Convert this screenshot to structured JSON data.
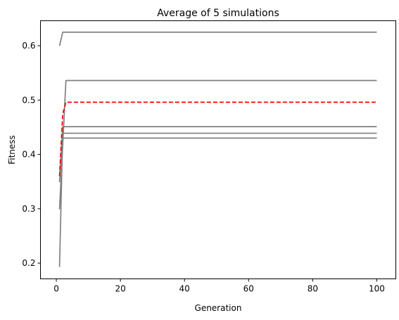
{
  "chart_data": {
    "type": "line",
    "title": "Average of 5 simulations",
    "xlabel": "Generation",
    "ylabel": "Fitness",
    "xlim": [
      -4.95,
      105.95
    ],
    "ylim": [
      0.171,
      0.646
    ],
    "xticks": [
      0,
      20,
      40,
      60,
      80,
      100
    ],
    "yticks": [
      0.2,
      0.3,
      0.4,
      0.5,
      0.6
    ],
    "grid": false,
    "legend": "none",
    "series": [
      {
        "color": "#808080",
        "style": "solid",
        "x": [
          1,
          2,
          100
        ],
        "y": [
          0.6,
          0.625,
          0.625
        ]
      },
      {
        "color": "#808080",
        "style": "solid",
        "x": [
          1,
          3,
          100
        ],
        "y": [
          0.299,
          0.536,
          0.536
        ]
      },
      {
        "color": "#808080",
        "style": "solid",
        "x": [
          1,
          2,
          100
        ],
        "y": [
          0.349,
          0.451,
          0.451
        ]
      },
      {
        "color": "#808080",
        "style": "solid",
        "x": [
          1,
          2,
          100
        ],
        "y": [
          0.193,
          0.439,
          0.439
        ]
      },
      {
        "color": "#808080",
        "style": "solid",
        "x": [
          1,
          2,
          100
        ],
        "y": [
          0.36,
          0.43,
          0.43
        ]
      },
      {
        "color": "#ff0000",
        "style": "dashed",
        "x": [
          1,
          2,
          3,
          100
        ],
        "y": [
          0.36,
          0.475,
          0.496,
          0.496
        ]
      }
    ]
  }
}
